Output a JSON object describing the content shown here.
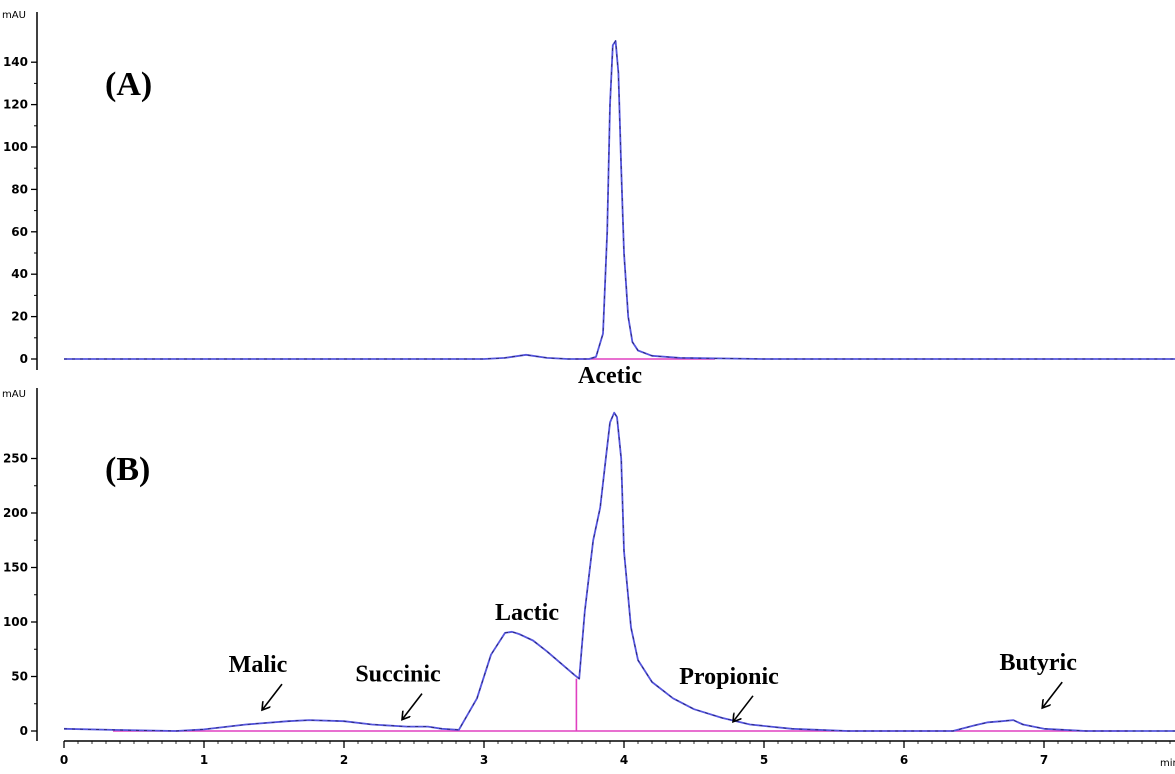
{
  "chart_data": [
    {
      "type": "line",
      "panel_label": "(A)",
      "y_unit": "mAU",
      "ylim": [
        -5,
        150
      ],
      "y_ticks": [
        "0",
        "20",
        "40",
        "60",
        "80",
        "100",
        "120",
        "140"
      ],
      "x_unit": "min",
      "xlim": [
        0,
        8.1
      ],
      "grid": false,
      "series": [
        {
          "x": [
            0,
            3.0,
            3.15,
            3.3,
            3.45,
            3.6,
            3.75,
            3.8,
            3.85,
            3.88,
            3.9,
            3.92,
            3.94,
            3.96,
            3.98,
            4.0,
            4.03,
            4.06,
            4.1,
            4.2,
            4.4,
            5.0,
            8.1
          ],
          "y": [
            0,
            0,
            0.5,
            2,
            0.5,
            0,
            0,
            1,
            12,
            60,
            120,
            148,
            150,
            135,
            90,
            50,
            20,
            8,
            4,
            1.5,
            0.5,
            0,
            0
          ]
        }
      ],
      "annotations": [
        {
          "text": "Acetic",
          "x": 3.9,
          "y": -7
        }
      ]
    },
    {
      "type": "line",
      "panel_label": "(B)",
      "y_unit": "mAU",
      "ylim": [
        -5,
        305
      ],
      "y_ticks": [
        "0",
        "50",
        "100",
        "150",
        "200",
        "250"
      ],
      "x_unit": "min",
      "x_ticks": [
        "0",
        "1",
        "2",
        "3",
        "4",
        "5",
        "6",
        "7"
      ],
      "xlim": [
        0,
        8.1
      ],
      "grid": false,
      "series": [
        {
          "x": [
            0,
            0.35,
            0.8,
            1.0,
            1.3,
            1.6,
            1.75,
            2.0,
            2.2,
            2.45,
            2.6,
            2.7,
            2.82,
            2.95,
            3.05,
            3.15,
            3.2,
            3.25,
            3.35,
            3.45,
            3.55,
            3.65,
            3.68,
            3.72,
            3.78,
            3.83,
            3.87,
            3.9,
            3.93,
            3.95,
            3.98,
            4.0,
            4.05,
            4.1,
            4.2,
            4.35,
            4.5,
            4.7,
            4.9,
            5.2,
            5.6,
            6.0,
            6.35,
            6.5,
            6.6,
            6.7,
            6.78,
            6.85,
            7.0,
            7.3,
            7.6,
            8.1
          ],
          "y": [
            2,
            1,
            0,
            1.5,
            6,
            9,
            10,
            9,
            6,
            4,
            4,
            2,
            1,
            30,
            70,
            90,
            91,
            89,
            83,
            73,
            62,
            51,
            48,
            110,
            175,
            205,
            250,
            283,
            292,
            288,
            250,
            165,
            95,
            65,
            45,
            30,
            20,
            12,
            6,
            2,
            0,
            0,
            0,
            5,
            8,
            9,
            10,
            6,
            2,
            0,
            0,
            0
          ]
        }
      ],
      "annotations": [
        {
          "text": "Malic",
          "x": 1.6,
          "y": 10
        },
        {
          "text": "Succinic",
          "x": 2.6,
          "y": 4
        },
        {
          "text": "Lactic",
          "x": 3.2,
          "y": 91
        },
        {
          "text": "Propionic",
          "x": 5.0,
          "y": 2
        },
        {
          "text": "Butyric",
          "x": 6.78,
          "y": 10
        }
      ]
    }
  ]
}
